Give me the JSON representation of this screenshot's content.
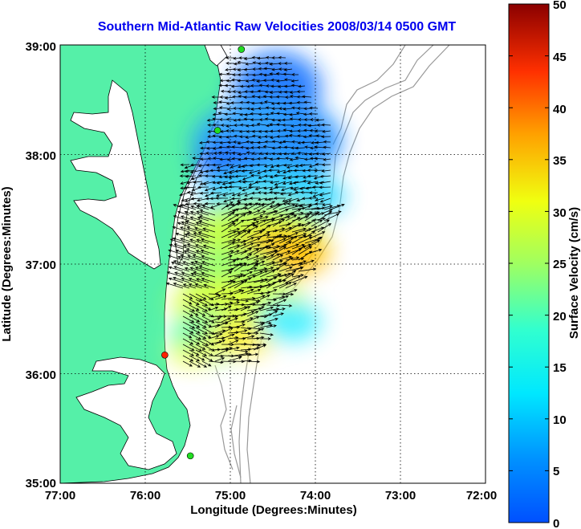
{
  "title": "Southern Mid-Atlantic Raw Velocities 2008/03/14 0500 GMT",
  "x_axis": {
    "label": "Longitude (Degrees:Minutes)",
    "ticks": [
      "77:00",
      "76:00",
      "75:00",
      "74:00",
      "73:00",
      "72:00"
    ]
  },
  "y_axis": {
    "label": "Latitude (Degrees:Minutes)",
    "ticks": [
      "39:00",
      "38:00",
      "37:00",
      "36:00",
      "35:00"
    ]
  },
  "colorbar": {
    "label": "Surface Velocity (cm/s)",
    "ticks": [
      "50",
      "45",
      "40",
      "35",
      "30",
      "25",
      "20",
      "15",
      "10",
      "5",
      "0"
    ],
    "min": 0,
    "max": 50,
    "colormap": "jet"
  },
  "colors": {
    "land": "#55f0a8",
    "water": "#ffffff",
    "coastline": "#000000",
    "bathymetry": "#999999",
    "vector": "#000000",
    "grid": "#000000"
  },
  "chart_data": {
    "type": "vector-field-map",
    "xlim": [
      -77,
      -72
    ],
    "ylim": [
      35,
      39
    ],
    "grid": true,
    "stations": [
      {
        "lon": -74.87,
        "lat": 38.96,
        "color": "#22dd22"
      },
      {
        "lon": -75.15,
        "lat": 38.22,
        "color": "#22dd22"
      },
      {
        "lon": -75.77,
        "lat": 36.17,
        "color": "#ff2200"
      },
      {
        "lon": -75.47,
        "lat": 35.25,
        "color": "#22dd22"
      }
    ],
    "speed_regions": [
      {
        "lon": -74.5,
        "lat": 38.6,
        "speed": 5
      },
      {
        "lon": -74.4,
        "lat": 38.2,
        "speed": 8
      },
      {
        "lon": -74.8,
        "lat": 37.9,
        "speed": 6
      },
      {
        "lon": -74.3,
        "lat": 37.5,
        "speed": 14
      },
      {
        "lon": -74.4,
        "lat": 37.1,
        "speed": 30
      },
      {
        "lon": -74.9,
        "lat": 36.9,
        "speed": 22
      },
      {
        "lon": -74.7,
        "lat": 36.6,
        "speed": 25
      },
      {
        "lon": -75.0,
        "lat": 36.4,
        "speed": 15
      },
      {
        "lon": -75.4,
        "lat": 36.2,
        "speed": 20
      }
    ]
  }
}
